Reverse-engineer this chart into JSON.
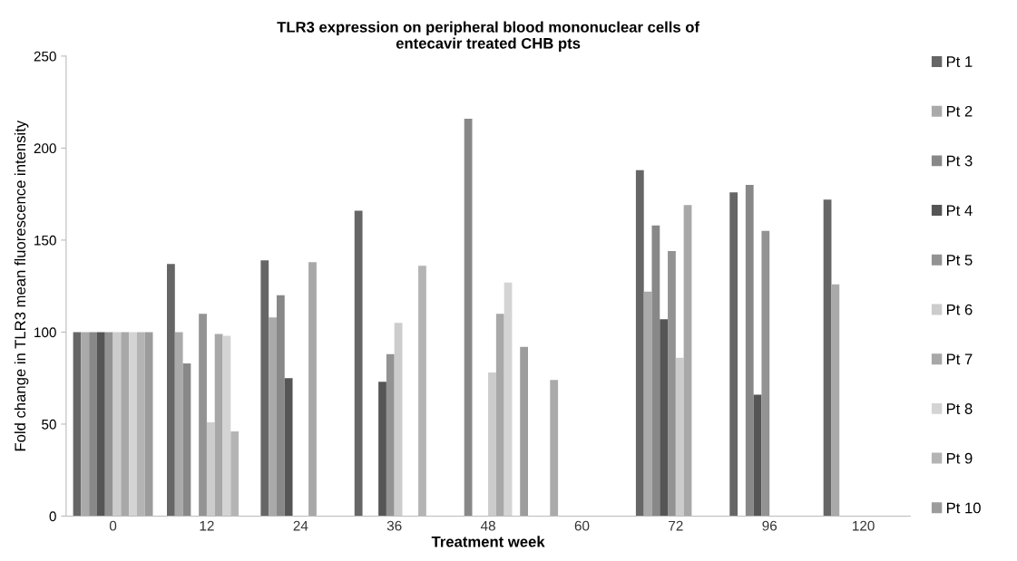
{
  "chart_data": {
    "type": "bar",
    "title": "TLR3 expression on peripheral blood mononuclear cells of\nentecavir treated CHB pts",
    "xlabel": "Treatment week",
    "ylabel": "Fold change in TLR3 mean fluorescence intensity",
    "categories": [
      "0",
      "12",
      "24",
      "36",
      "48",
      "60",
      "72",
      "96",
      "120"
    ],
    "series": [
      {
        "name": "Pt 1",
        "color": "#666666",
        "values": [
          100,
          137,
          139,
          166,
          null,
          null,
          188,
          176,
          172
        ]
      },
      {
        "name": "Pt 2",
        "color": "#aaaaaa",
        "values": [
          100,
          100,
          108,
          null,
          null,
          74,
          122,
          null,
          126
        ]
      },
      {
        "name": "Pt 3",
        "color": "#888888",
        "values": [
          100,
          83,
          120,
          null,
          216,
          null,
          158,
          180,
          null
        ]
      },
      {
        "name": "Pt 4",
        "color": "#555555",
        "values": [
          100,
          null,
          75,
          73,
          null,
          null,
          107,
          66,
          null
        ]
      },
      {
        "name": "Pt 5",
        "color": "#939393",
        "values": [
          100,
          110,
          null,
          88,
          null,
          null,
          144,
          155,
          null
        ]
      },
      {
        "name": "Pt 6",
        "color": "#cccccc",
        "values": [
          100,
          51,
          null,
          105,
          78,
          null,
          86,
          null,
          null
        ]
      },
      {
        "name": "Pt 7",
        "color": "#a8a8a8",
        "values": [
          100,
          99,
          138,
          null,
          110,
          null,
          169,
          null,
          null
        ]
      },
      {
        "name": "Pt 8",
        "color": "#d4d4d4",
        "values": [
          100,
          98,
          null,
          null,
          127,
          null,
          null,
          null,
          null
        ]
      },
      {
        "name": "Pt 9",
        "color": "#b4b4b4",
        "values": [
          100,
          46,
          null,
          136,
          null,
          null,
          null,
          null,
          null
        ]
      },
      {
        "name": "Pt 10",
        "color": "#9c9c9c",
        "values": [
          100,
          null,
          null,
          null,
          92,
          null,
          null,
          null,
          null
        ]
      }
    ],
    "ylim": [
      0,
      250
    ],
    "yticks": [
      0,
      50,
      100,
      150,
      200,
      250
    ],
    "grid": false,
    "legend": "right"
  }
}
